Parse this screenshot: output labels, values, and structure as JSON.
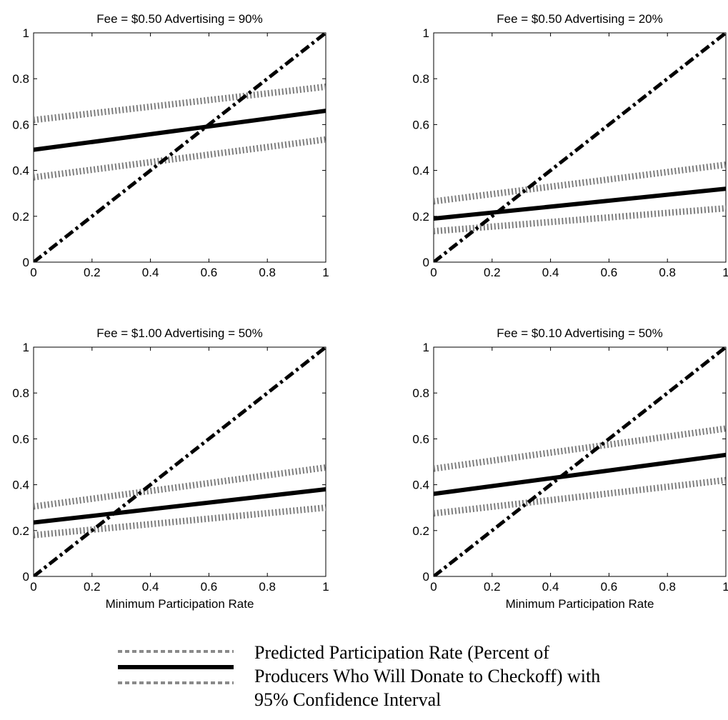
{
  "chart_data": [
    {
      "type": "line",
      "title": "Fee = $0.50 Advertising = 90%",
      "xlabel": "",
      "xlim": [
        0,
        1
      ],
      "ylim": [
        0,
        1
      ],
      "xticks": [
        "0",
        "0.2",
        "0.4",
        "0.6",
        "0.8",
        "1"
      ],
      "yticks": [
        "0",
        "0.2",
        "0.4",
        "0.6",
        "0.8",
        "1"
      ],
      "grid": false,
      "series": [
        {
          "role": "upper",
          "style": "dotted",
          "x": [
            0,
            1
          ],
          "y": [
            0.62,
            0.765
          ]
        },
        {
          "role": "predicted",
          "style": "solid",
          "x": [
            0,
            1
          ],
          "y": [
            0.49,
            0.66
          ]
        },
        {
          "role": "lower",
          "style": "dotted",
          "x": [
            0,
            1
          ],
          "y": [
            0.37,
            0.535
          ]
        },
        {
          "role": "diagonal",
          "style": "dashdot",
          "x": [
            0,
            1
          ],
          "y": [
            0,
            1
          ]
        }
      ]
    },
    {
      "type": "line",
      "title": "Fee = $0.50 Advertising = 20%",
      "xlabel": "",
      "xlim": [
        0,
        1
      ],
      "ylim": [
        0,
        1
      ],
      "xticks": [
        "0",
        "0.2",
        "0.4",
        "0.6",
        "0.8",
        "1"
      ],
      "yticks": [
        "0",
        "0.2",
        "0.4",
        "0.6",
        "0.8",
        "1"
      ],
      "grid": false,
      "series": [
        {
          "role": "upper",
          "style": "dotted",
          "x": [
            0,
            1
          ],
          "y": [
            0.265,
            0.425
          ]
        },
        {
          "role": "predicted",
          "style": "solid",
          "x": [
            0,
            1
          ],
          "y": [
            0.19,
            0.32
          ]
        },
        {
          "role": "lower",
          "style": "dotted",
          "x": [
            0,
            1
          ],
          "y": [
            0.135,
            0.235
          ]
        },
        {
          "role": "diagonal",
          "style": "dashdot",
          "x": [
            0,
            1
          ],
          "y": [
            0,
            1
          ]
        }
      ]
    },
    {
      "type": "line",
      "title": "Fee = $1.00 Advertising = 50%",
      "xlabel": "Minimum Participation Rate",
      "xlim": [
        0,
        1
      ],
      "ylim": [
        0,
        1
      ],
      "xticks": [
        "0",
        "0.2",
        "0.4",
        "0.6",
        "0.8",
        "1"
      ],
      "yticks": [
        "0",
        "0.2",
        "0.4",
        "0.6",
        "0.8",
        "1"
      ],
      "grid": false,
      "series": [
        {
          "role": "upper",
          "style": "dotted",
          "x": [
            0,
            1
          ],
          "y": [
            0.305,
            0.475
          ]
        },
        {
          "role": "predicted",
          "style": "solid",
          "x": [
            0,
            1
          ],
          "y": [
            0.235,
            0.38
          ]
        },
        {
          "role": "lower",
          "style": "dotted",
          "x": [
            0,
            1
          ],
          "y": [
            0.18,
            0.3
          ]
        },
        {
          "role": "diagonal",
          "style": "dashdot",
          "x": [
            0,
            1
          ],
          "y": [
            0,
            1
          ]
        }
      ]
    },
    {
      "type": "line",
      "title": "Fee = $0.10 Advertising = 50%",
      "xlabel": "Minimum Participation Rate",
      "xlim": [
        0,
        1
      ],
      "ylim": [
        0,
        1
      ],
      "xticks": [
        "0",
        "0.2",
        "0.4",
        "0.6",
        "0.8",
        "1"
      ],
      "yticks": [
        "0",
        "0.2",
        "0.4",
        "0.6",
        "0.8",
        "1"
      ],
      "grid": false,
      "series": [
        {
          "role": "upper",
          "style": "dotted",
          "x": [
            0,
            1
          ],
          "y": [
            0.47,
            0.645
          ]
        },
        {
          "role": "predicted",
          "style": "solid",
          "x": [
            0,
            1
          ],
          "y": [
            0.36,
            0.53
          ]
        },
        {
          "role": "lower",
          "style": "dotted",
          "x": [
            0,
            1
          ],
          "y": [
            0.275,
            0.42
          ]
        },
        {
          "role": "diagonal",
          "style": "dashdot",
          "x": [
            0,
            1
          ],
          "y": [
            0,
            1
          ]
        }
      ]
    }
  ],
  "legend": {
    "placement": "bottom-center",
    "lines": [
      "Predicted Participation Rate (Percent of",
      "Producers Who Will Donate to Checkoff) with",
      "95% Confidence Interval"
    ]
  }
}
